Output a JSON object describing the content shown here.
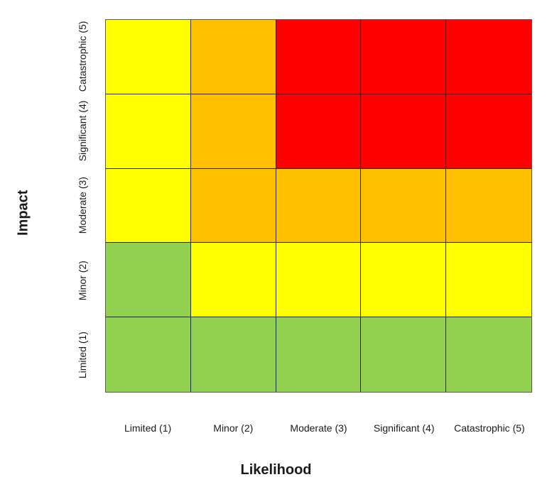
{
  "axes": {
    "y_title": "Impact",
    "x_title": "Likelihood",
    "y_ticks": [
      "Catastrophic (5)",
      "Significant (4)",
      "Moderate (3)",
      "Minor (2)",
      "Limited (1)"
    ],
    "x_ticks": [
      "Limited (1)",
      "Minor (2)",
      "Moderate (3)",
      "Significant (4)",
      "Catastrophic (5)"
    ]
  },
  "colors": {
    "green": "#92D050",
    "yellow": "#FFFF00",
    "orange": "#FFC000",
    "red": "#FF0000",
    "grid_line": "#262626",
    "outer_border": "#595959",
    "text": "#1a1a1a",
    "background": "#FFFFFF"
  },
  "chart_data": {
    "type": "heatmap",
    "title": "",
    "xlabel": "Likelihood",
    "ylabel": "Impact",
    "x": [
      "Limited (1)",
      "Minor (2)",
      "Moderate (3)",
      "Significant (4)",
      "Catastrophic (5)"
    ],
    "y": [
      "Catastrophic (5)",
      "Significant (4)",
      "Moderate (3)",
      "Minor (2)",
      "Limited (1)"
    ],
    "rows": [
      [
        "yellow",
        "orange",
        "red",
        "red",
        "red"
      ],
      [
        "yellow",
        "orange",
        "red",
        "red",
        "red"
      ],
      [
        "yellow",
        "orange",
        "orange",
        "orange",
        "orange"
      ],
      [
        "green",
        "yellow",
        "yellow",
        "yellow",
        "yellow"
      ],
      [
        "green",
        "green",
        "green",
        "green",
        "green"
      ]
    ],
    "legend_position": "none",
    "grid": true,
    "notes": "5x5 risk assessment matrix; rows listed top (Catastrophic 5) to bottom (Limited 1)"
  }
}
